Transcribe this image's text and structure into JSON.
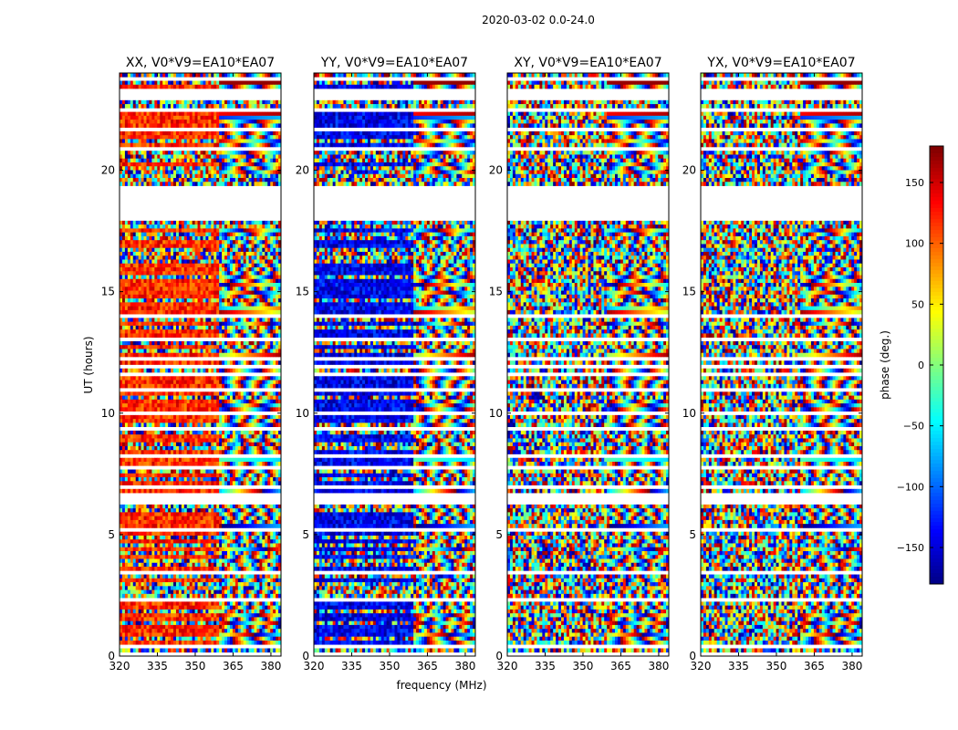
{
  "figure": {
    "suptitle": "2020-03-02 0.0-24.0",
    "xlabel": "frequency (MHz)",
    "ylabel": "UT (hours)"
  },
  "colorbar": {
    "label": "phase (deg.)",
    "range": [
      -180,
      180
    ],
    "ticks": [
      -150,
      -100,
      -50,
      0,
      50,
      100,
      150
    ],
    "tick_labels": [
      "−150",
      "−100",
      "−50",
      "0",
      "50",
      "100",
      "150"
    ],
    "colormap": "jet",
    "colors": [
      "#00007f",
      "#0000ff",
      "#007fff",
      "#00ffff",
      "#7fff7f",
      "#ffff00",
      "#ff7f00",
      "#ff0000",
      "#7f0000"
    ]
  },
  "chart_data": {
    "type": "heatmap",
    "xlim": [
      320,
      384
    ],
    "ylim": [
      0,
      24
    ],
    "x_ticks": [
      320,
      335,
      350,
      365,
      380
    ],
    "x_tick_labels": [
      "320",
      "335",
      "350",
      "365",
      "380"
    ],
    "y_ticks": [
      0,
      5,
      10,
      15,
      20
    ],
    "y_tick_labels": [
      "0",
      "5",
      "10",
      "15",
      "20"
    ],
    "value_label": "phase (deg.)",
    "value_range": [
      -180,
      180
    ],
    "panels": [
      {
        "title": "XX, V0*V9=EA10*EA07",
        "dominant_phase": 120
      },
      {
        "title": "YY, V0*V9=EA10*EA07",
        "dominant_phase": -140
      },
      {
        "title": "XY, V0*V9=EA10*EA07",
        "dominant_phase": null
      },
      {
        "title": "YX, V0*V9=EA10*EA07",
        "dominant_phase": null
      }
    ],
    "data_gaps_ut": [
      [
        18.0,
        19.5
      ],
      [
        23.0,
        23.4
      ],
      [
        21.6,
        21.8
      ],
      [
        20.95,
        21.05
      ]
    ]
  }
}
